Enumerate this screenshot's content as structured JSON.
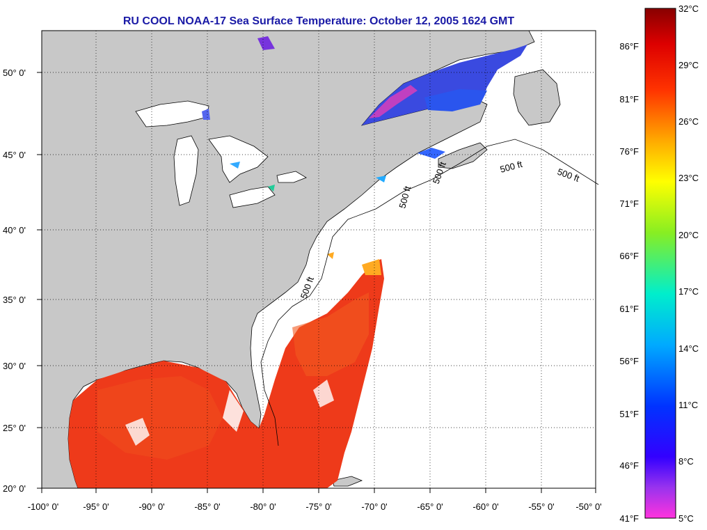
{
  "title": "RU COOL  NOAA-17  Sea Surface Temperature:  October 12, 2005 1624 GMT",
  "lat_labels": [
    "50° 0'",
    "45° 0'",
    "40° 0'",
    "35° 0'",
    "30° 0'",
    "25° 0'",
    "20° 0'"
  ],
  "lon_labels": [
    "-100° 0'",
    "-95° 0'",
    "-90° 0'",
    "-85° 0'",
    "-80° 0'",
    "-75° 0'",
    "-70° 0'",
    "-65° 0'",
    "-60° 0'",
    "-55° 0'",
    "-50° 0'"
  ],
  "colorbar": {
    "fahrenheit": [
      "86°F",
      "81°F",
      "76°F",
      "71°F",
      "66°F",
      "61°F",
      "56°F",
      "51°F",
      "46°F",
      "41°F"
    ],
    "celsius": [
      "32°C",
      "29°C",
      "26°C",
      "23°C",
      "20°C",
      "17°C",
      "14°C",
      "11°C",
      "8°C",
      "5°C"
    ]
  },
  "contour_labels": [
    "500 ft",
    "500 ft",
    "500 ft",
    "500 ft",
    "500 ft"
  ],
  "colors": {
    "land": "#c8c8c8",
    "ocean_nodata": "#ffffff",
    "title": "#1a1aa6",
    "warm_sst": "#ee3a1a",
    "cold_sst": "#3a4ae0"
  }
}
